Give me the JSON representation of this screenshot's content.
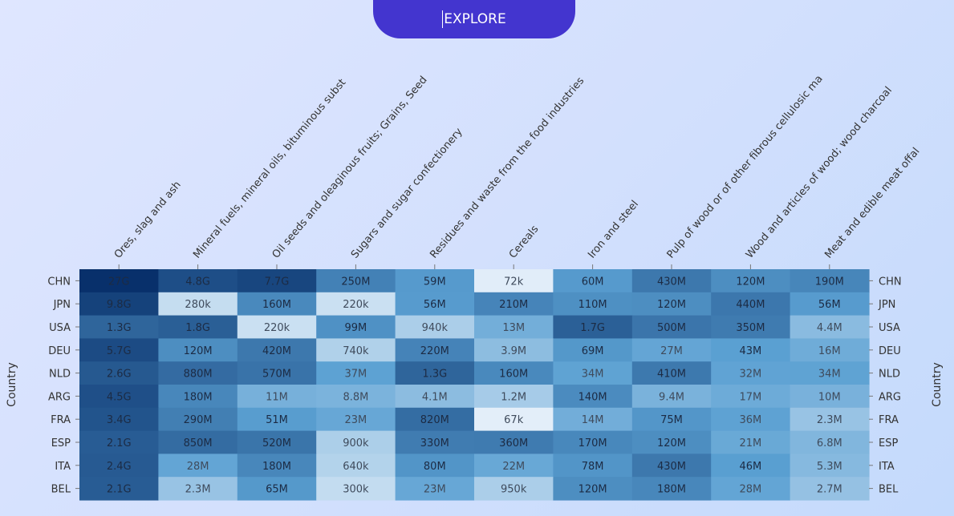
{
  "button": {
    "label": "EXPLORE"
  },
  "chart_data": {
    "type": "heatmap",
    "title": "",
    "xlabel": "",
    "ylabel": "Country",
    "x_tick_position": "top",
    "y_ticks_both_sides": true,
    "categories": [
      "Ores, slag and ash",
      "Mineral fuels, mineral oils, bituminous subst",
      "Oil seeds and oleaginous fruits; Grains, Seed",
      "Sugars and sugar confectionery",
      "Residues and waste from the food industries",
      "Cereals",
      "Iron and steel",
      "Pulp of wood or of other fibrous cellulosic ma",
      "Wood and articles of wood; wood charcoal",
      "Meat and edible meat offal"
    ],
    "rows": [
      "CHN",
      "JPN",
      "USA",
      "DEU",
      "NLD",
      "ARG",
      "FRA",
      "ESP",
      "ITA",
      "BEL"
    ],
    "values": [
      [
        27000000000,
        4800000000,
        7700000000,
        250000000,
        59000000,
        72000,
        60000000,
        430000000,
        120000000,
        190000000
      ],
      [
        9800000000,
        280000,
        160000000,
        220000,
        56000000,
        210000000,
        110000000,
        120000000,
        440000000,
        56000000
      ],
      [
        1300000000,
        1800000000,
        220000,
        99000000,
        940000,
        13000000,
        1700000000,
        500000000,
        350000000,
        4400000
      ],
      [
        5700000000,
        120000000,
        420000000,
        740000,
        220000000,
        3900000,
        69000000,
        27000000,
        43000000,
        16000000
      ],
      [
        2600000000,
        880000000,
        570000000,
        37000000,
        1300000000,
        160000000,
        34000000,
        410000000,
        32000000,
        34000000
      ],
      [
        4500000000,
        180000000,
        11000000,
        8800000,
        4100000,
        1200000,
        140000000,
        9400000,
        17000000,
        10000000
      ],
      [
        3400000000,
        290000000,
        51000000,
        23000000,
        820000000,
        67000,
        14000000,
        75000000,
        36000000,
        2300000
      ],
      [
        2100000000,
        850000000,
        520000000,
        900000,
        330000000,
        360000000,
        170000000,
        120000000,
        21000000,
        6800000
      ],
      [
        2400000000,
        28000000,
        180000000,
        640000,
        80000000,
        22000000,
        78000000,
        430000000,
        46000000,
        5300000
      ],
      [
        2100000000,
        2300000,
        65000000,
        300000,
        23000000,
        950000,
        120000000,
        180000000,
        28000000,
        2700000
      ]
    ],
    "labels": [
      [
        "27G",
        "4.8G",
        "7.7G",
        "250M",
        "59M",
        "72k",
        "60M",
        "430M",
        "120M",
        "190M"
      ],
      [
        "9.8G",
        "280k",
        "160M",
        "220k",
        "56M",
        "210M",
        "110M",
        "120M",
        "440M",
        "56M"
      ],
      [
        "1.3G",
        "1.8G",
        "220k",
        "99M",
        "940k",
        "13M",
        "1.7G",
        "500M",
        "350M",
        "4.4M"
      ],
      [
        "5.7G",
        "120M",
        "420M",
        "740k",
        "220M",
        "3.9M",
        "69M",
        "27M",
        "43M",
        "16M"
      ],
      [
        "2.6G",
        "880M",
        "570M",
        "37M",
        "1.3G",
        "160M",
        "34M",
        "410M",
        "32M",
        "34M"
      ],
      [
        "4.5G",
        "180M",
        "11M",
        "8.8M",
        "4.1M",
        "1.2M",
        "140M",
        "9.4M",
        "17M",
        "10M"
      ],
      [
        "3.4G",
        "290M",
        "51M",
        "23M",
        "820M",
        "67k",
        "14M",
        "75M",
        "36M",
        "2.3M"
      ],
      [
        "2.1G",
        "850M",
        "520M",
        "900k",
        "330M",
        "360M",
        "170M",
        "120M",
        "21M",
        "6.8M"
      ],
      [
        "2.4G",
        "28M",
        "180M",
        "640k",
        "80M",
        "22M",
        "78M",
        "430M",
        "46M",
        "5.3M"
      ],
      [
        "2.1G",
        "2.3M",
        "65M",
        "300k",
        "23M",
        "950k",
        "120M",
        "180M",
        "28M",
        "2.7M"
      ]
    ],
    "color_scale": "log",
    "colors": {
      "low": "#e3eef9",
      "mid": "#5aa0d2",
      "high": "#08306b"
    }
  }
}
